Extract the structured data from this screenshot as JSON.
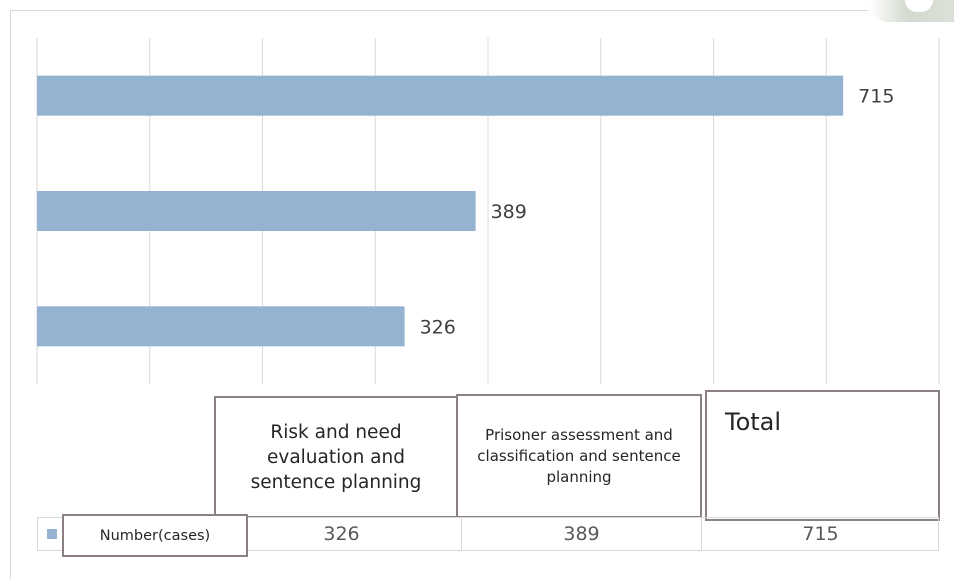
{
  "chart_data": {
    "type": "bar",
    "orientation": "horizontal",
    "categories": [
      "Risk and need evaluation and sentence planning",
      "Prisoner assessment and classification and sentence planning",
      "Total"
    ],
    "series": [
      {
        "name": "Number(cases)",
        "values": [
          326,
          389,
          715
        ]
      }
    ],
    "data_labels": [
      "326",
      "389",
      "715"
    ],
    "xlim": [
      0,
      800
    ],
    "grid": true,
    "legend": "data-table",
    "bar_color": "#93b3d1"
  },
  "table": {
    "series_label": "Number(cases)",
    "values": [
      "326",
      "389",
      "715"
    ]
  },
  "category_boxes": {
    "risk": "Risk and need evaluation and sentence planning",
    "prisoner": "Prisoner assessment and classification and sentence planning",
    "total": "Total"
  }
}
